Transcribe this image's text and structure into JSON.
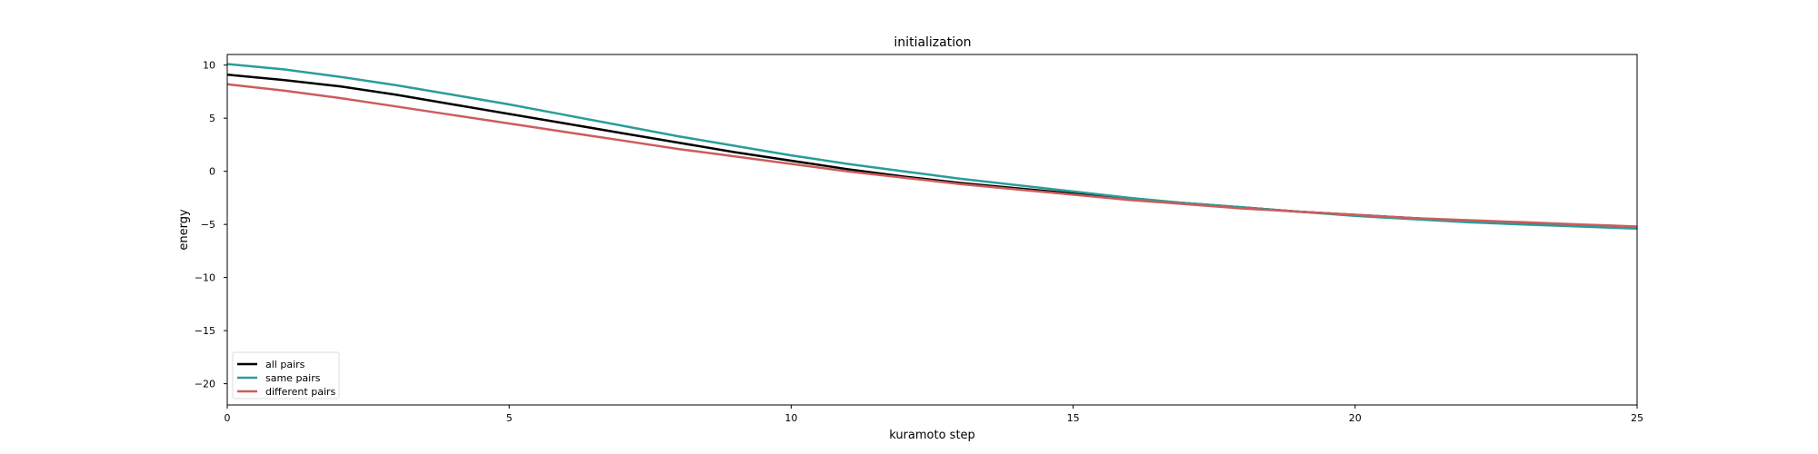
{
  "chart_data": {
    "type": "line",
    "title": "initialization",
    "xlabel": "kuramoto step",
    "ylabel": "energy",
    "xlim": [
      0,
      25
    ],
    "ylim": [
      -22,
      11
    ],
    "xticks": [
      0,
      5,
      10,
      15,
      20,
      25
    ],
    "yticks": [
      10,
      5,
      0,
      -5,
      -10,
      -15,
      -20
    ],
    "grid": false,
    "legend_position": "lower-left",
    "x": [
      0,
      1,
      2,
      3,
      4,
      5,
      6,
      7,
      8,
      9,
      10,
      11,
      12,
      13,
      14,
      15,
      16,
      17,
      18,
      19,
      20,
      21,
      22,
      23,
      24,
      25
    ],
    "series": [
      {
        "name": "all pairs",
        "color": "#000000",
        "values": [
          9.1,
          8.6,
          8.0,
          7.2,
          6.3,
          5.4,
          4.5,
          3.6,
          2.7,
          1.8,
          1.0,
          0.2,
          -0.5,
          -1.1,
          -1.6,
          -2.1,
          -2.6,
          -3.0,
          -3.4,
          -3.8,
          -4.1,
          -4.4,
          -4.7,
          -4.9,
          -5.1,
          -5.3
        ]
      },
      {
        "name": "same pairs",
        "color": "#2a9d98",
        "values": [
          10.1,
          9.6,
          8.9,
          8.1,
          7.2,
          6.3,
          5.3,
          4.3,
          3.3,
          2.4,
          1.5,
          0.7,
          0.0,
          -0.7,
          -1.3,
          -1.9,
          -2.5,
          -3.0,
          -3.4,
          -3.8,
          -4.2,
          -4.5,
          -4.8,
          -5.0,
          -5.2,
          -5.4
        ]
      },
      {
        "name": "different pairs",
        "color": "#cd5c5c",
        "values": [
          8.2,
          7.6,
          6.9,
          6.1,
          5.3,
          4.5,
          3.7,
          2.9,
          2.1,
          1.4,
          0.7,
          0.0,
          -0.6,
          -1.2,
          -1.7,
          -2.2,
          -2.7,
          -3.1,
          -3.5,
          -3.8,
          -4.1,
          -4.4,
          -4.6,
          -4.8,
          -5.0,
          -5.2
        ]
      }
    ]
  }
}
